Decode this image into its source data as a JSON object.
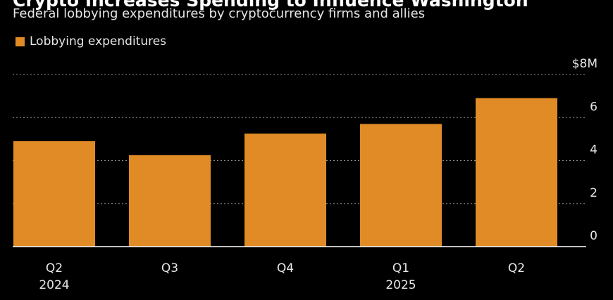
{
  "title": "Crypto Increases Spending to Influence Washington",
  "subtitle": "Federal lobbying expenditures by cryptocurrency firms and allies",
  "legend": {
    "label": "Lobbying expenditures"
  },
  "colors": {
    "bar": "#e08b25",
    "grid": "#8a8a8a",
    "axis": "#ffffff",
    "background": "#000000"
  },
  "chart_data": {
    "type": "bar",
    "categories": [
      "Q2",
      "Q3",
      "Q4",
      "Q1",
      "Q2"
    ],
    "category_years": [
      "2024",
      "",
      "",
      "2025",
      ""
    ],
    "series": [
      {
        "name": "Lobbying expenditures",
        "values": [
          4.9,
          4.25,
          5.25,
          5.7,
          6.9
        ]
      }
    ],
    "ylim": [
      0,
      8
    ],
    "yticks": [
      0,
      2,
      4,
      6,
      8
    ],
    "ytick_labels": [
      "0",
      "2",
      "4",
      "6",
      "$8M"
    ],
    "grid": true,
    "legend_position": "top-left"
  }
}
